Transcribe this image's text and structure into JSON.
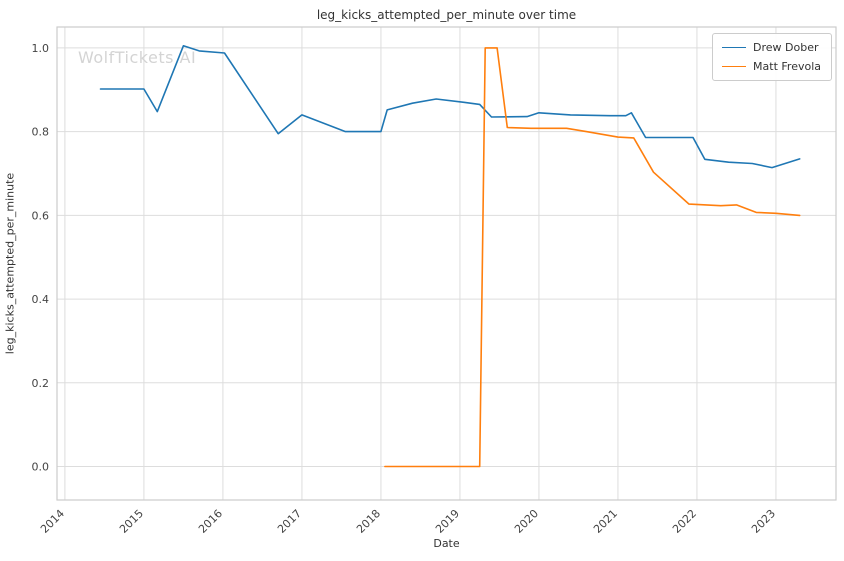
{
  "watermark": "WolfTickets AI",
  "chart_data": {
    "type": "line",
    "title": "leg_kicks_attempted_per_minute over time",
    "xlabel": "Date",
    "ylabel": "leg_kicks_attempted_per_minute",
    "grid": true,
    "legend_position": "upper right",
    "xlim": [
      2013.9,
      2023.76
    ],
    "ylim": [
      -0.08,
      1.05
    ],
    "x_ticks": [
      2014,
      2015,
      2016,
      2017,
      2018,
      2019,
      2020,
      2021,
      2022,
      2023
    ],
    "y_ticks": [
      0.0,
      0.2,
      0.4,
      0.6,
      0.8,
      1.0
    ],
    "series": [
      {
        "name": "Drew Dober",
        "color": "#1f77b4",
        "x": [
          2014.45,
          2015.0,
          2015.17,
          2015.5,
          2015.7,
          2016.02,
          2016.7,
          2017.0,
          2017.55,
          2018.0,
          2018.08,
          2018.4,
          2018.7,
          2019.05,
          2019.25,
          2019.4,
          2019.85,
          2020.0,
          2020.4,
          2020.9,
          2021.1,
          2021.17,
          2021.35,
          2021.95,
          2022.1,
          2022.4,
          2022.7,
          2022.95,
          2023.3
        ],
        "y": [
          0.902,
          0.902,
          0.848,
          1.005,
          0.993,
          0.988,
          0.795,
          0.84,
          0.8,
          0.8,
          0.852,
          0.868,
          0.878,
          0.87,
          0.865,
          0.835,
          0.836,
          0.845,
          0.84,
          0.838,
          0.838,
          0.845,
          0.786,
          0.786,
          0.734,
          0.727,
          0.724,
          0.714,
          0.735
        ]
      },
      {
        "name": "Matt Frevola",
        "color": "#ff7f0e",
        "x": [
          2018.05,
          2019.25,
          2019.32,
          2019.47,
          2019.6,
          2019.9,
          2020.35,
          2020.6,
          2021.0,
          2021.2,
          2021.45,
          2021.9,
          2022.3,
          2022.5,
          2022.75,
          2023.0,
          2023.3
        ],
        "y": [
          0.0,
          0.0,
          1.0,
          1.0,
          0.81,
          0.808,
          0.808,
          0.8,
          0.787,
          0.785,
          0.703,
          0.627,
          0.623,
          0.625,
          0.607,
          0.605,
          0.6
        ]
      }
    ]
  }
}
